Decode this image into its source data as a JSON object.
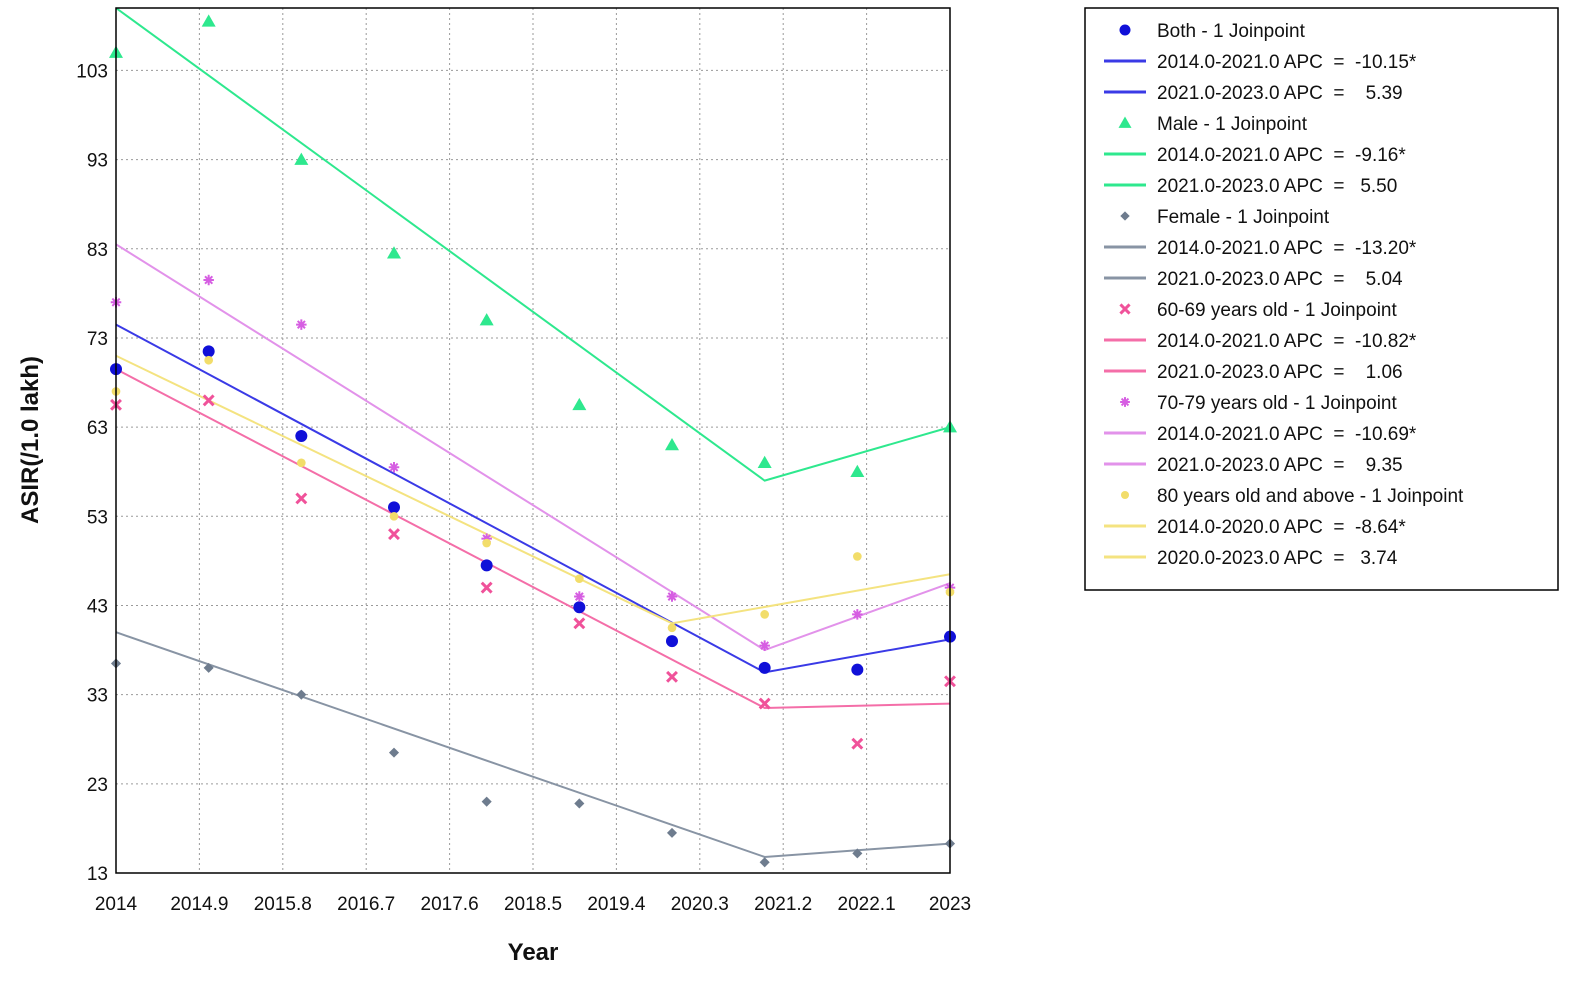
{
  "chart_data": {
    "type": "line",
    "title": "",
    "xlabel": "Year",
    "ylabel": "ASIR(/1.0 lakh)",
    "xlim": [
      2014,
      2023
    ],
    "ylim": [
      13,
      110
    ],
    "x_ticks": [
      2014,
      2014.9,
      2015.8,
      2016.7,
      2017.6,
      2018.5,
      2019.4,
      2020.3,
      2021.2,
      2022.1,
      2023
    ],
    "x_tick_labels": [
      "2014",
      "2014.9",
      "2015.8",
      "2016.7",
      "2017.6",
      "2018.5",
      "2019.4",
      "2020.3",
      "2021.2",
      "2022.1",
      "2023"
    ],
    "y_ticks": [
      13,
      23,
      33,
      43,
      53,
      63,
      73,
      83,
      93,
      103
    ],
    "y_tick_labels": [
      "13",
      "23",
      "33",
      "43",
      "53",
      "63",
      "73",
      "83",
      "93",
      "103"
    ],
    "grid": true,
    "legend_position": "right",
    "years": [
      2014,
      2015,
      2016,
      2017,
      2018,
      2019,
      2020,
      2021,
      2022,
      2023
    ],
    "series": [
      {
        "name": "Both - 1 Joinpoint",
        "color": "#1010d8",
        "line_color": "#3a3ae6",
        "marker": "circle",
        "observed": [
          69.5,
          71.5,
          62.0,
          54.0,
          47.5,
          42.8,
          39.0,
          36.0,
          35.8,
          39.5
        ],
        "fitted_years": [
          2014,
          2021,
          2023
        ],
        "fitted": [
          74.5,
          35.5,
          39.2
        ],
        "segments": [
          "2014.0-2021.0 APC  =  -10.15*",
          "2021.0-2023.0 APC  =    5.39"
        ]
      },
      {
        "name": "Male - 1 Joinpoint",
        "color": "#2ee88e",
        "line_color": "#2ee88e",
        "marker": "triangle",
        "observed": [
          105.0,
          108.5,
          93.0,
          82.5,
          75.0,
          65.5,
          61.0,
          59.0,
          58.0,
          63.0
        ],
        "fitted_years": [
          2014,
          2021,
          2023
        ],
        "fitted": [
          110.0,
          57.0,
          63.0
        ],
        "segments": [
          "2014.0-2021.0 APC  =  -9.16*",
          "2021.0-2023.0 APC  =   5.50"
        ]
      },
      {
        "name": "Female - 1 Joinpoint",
        "color": "#6e7c8e",
        "line_color": "#8894a4",
        "marker": "diamond",
        "observed": [
          36.5,
          36.0,
          33.0,
          26.5,
          21.0,
          20.8,
          17.5,
          14.2,
          15.2,
          16.3
        ],
        "fitted_years": [
          2014,
          2021,
          2023
        ],
        "fitted": [
          40.0,
          14.8,
          16.3
        ],
        "segments": [
          "2014.0-2021.0 APC  =  -13.20*",
          "2021.0-2023.0 APC  =    5.04"
        ]
      },
      {
        "name": "60-69 years old - 1 Joinpoint",
        "color": "#f0529a",
        "line_color": "#f46ea8",
        "marker": "x",
        "observed": [
          65.5,
          66.0,
          55.0,
          51.0,
          45.0,
          41.0,
          35.0,
          32.0,
          27.5,
          34.5
        ],
        "fitted_years": [
          2014,
          2021,
          2023
        ],
        "fitted": [
          69.5,
          31.5,
          32.0
        ],
        "segments": [
          "2014.0-2021.0 APC  =  -10.82*",
          "2021.0-2023.0 APC  =    1.06"
        ]
      },
      {
        "name": "70-79 years old - 1 Joinpoint",
        "color": "#d65ee2",
        "line_color": "#e292ea",
        "marker": "star",
        "observed": [
          77.0,
          79.5,
          74.5,
          58.5,
          50.5,
          44.0,
          44.0,
          38.5,
          42.0,
          45.0
        ],
        "fitted_years": [
          2014,
          2021,
          2023
        ],
        "fitted": [
          83.5,
          38.0,
          45.5
        ],
        "segments": [
          "2014.0-2021.0 APC  =  -10.69*",
          "2021.0-2023.0 APC  =    9.35"
        ]
      },
      {
        "name": "80 years old and above - 1 Joinpoint",
        "color": "#f2dd6a",
        "line_color": "#f4e380",
        "marker": "dot",
        "observed": [
          67.0,
          70.5,
          59.0,
          53.0,
          50.0,
          46.0,
          40.5,
          42.0,
          48.5,
          44.5
        ],
        "fitted_years": [
          2014,
          2020,
          2023
        ],
        "fitted": [
          71.0,
          41.0,
          46.5
        ],
        "segments": [
          "2014.0-2020.0 APC  =  -8.64*",
          "2020.0-2023.0 APC  =   3.74"
        ]
      }
    ]
  }
}
